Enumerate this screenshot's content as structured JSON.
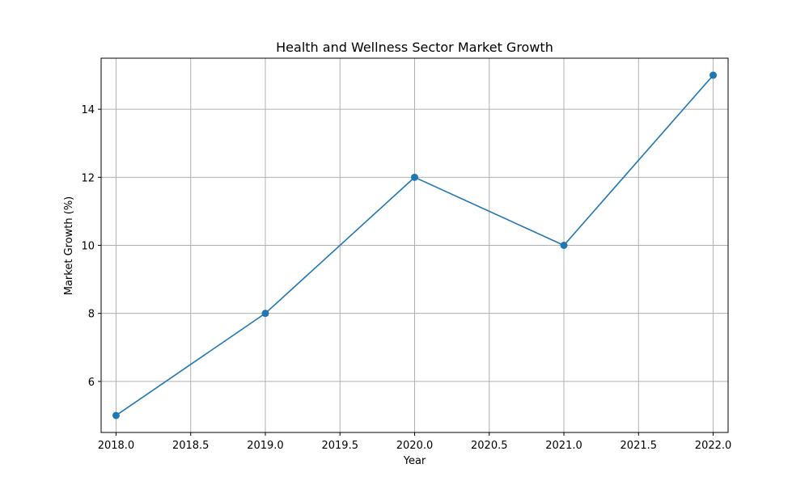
{
  "chart_data": {
    "type": "line",
    "title": "Health and Wellness Sector Market Growth",
    "xlabel": "Year",
    "ylabel": "Market Growth (%)",
    "x": [
      2018,
      2019,
      2020,
      2021,
      2022
    ],
    "series": [
      {
        "values": [
          5,
          8,
          12,
          10,
          15
        ],
        "color": "#1f77b4",
        "marker": "circle"
      }
    ],
    "xlim": [
      2017.9,
      2022.1
    ],
    "ylim": [
      4.5,
      15.5
    ],
    "x_ticks": [
      "2018.0",
      "2018.5",
      "2019.0",
      "2019.5",
      "2020.0",
      "2020.5",
      "2021.0",
      "2021.5",
      "2022.0"
    ],
    "x_tick_values": [
      2018.0,
      2018.5,
      2019.0,
      2019.5,
      2020.0,
      2020.5,
      2021.0,
      2021.5,
      2022.0
    ],
    "y_ticks": [
      "6",
      "8",
      "10",
      "12",
      "14"
    ],
    "y_tick_values": [
      6,
      8,
      10,
      12,
      14
    ],
    "grid": true,
    "legend": "none"
  }
}
